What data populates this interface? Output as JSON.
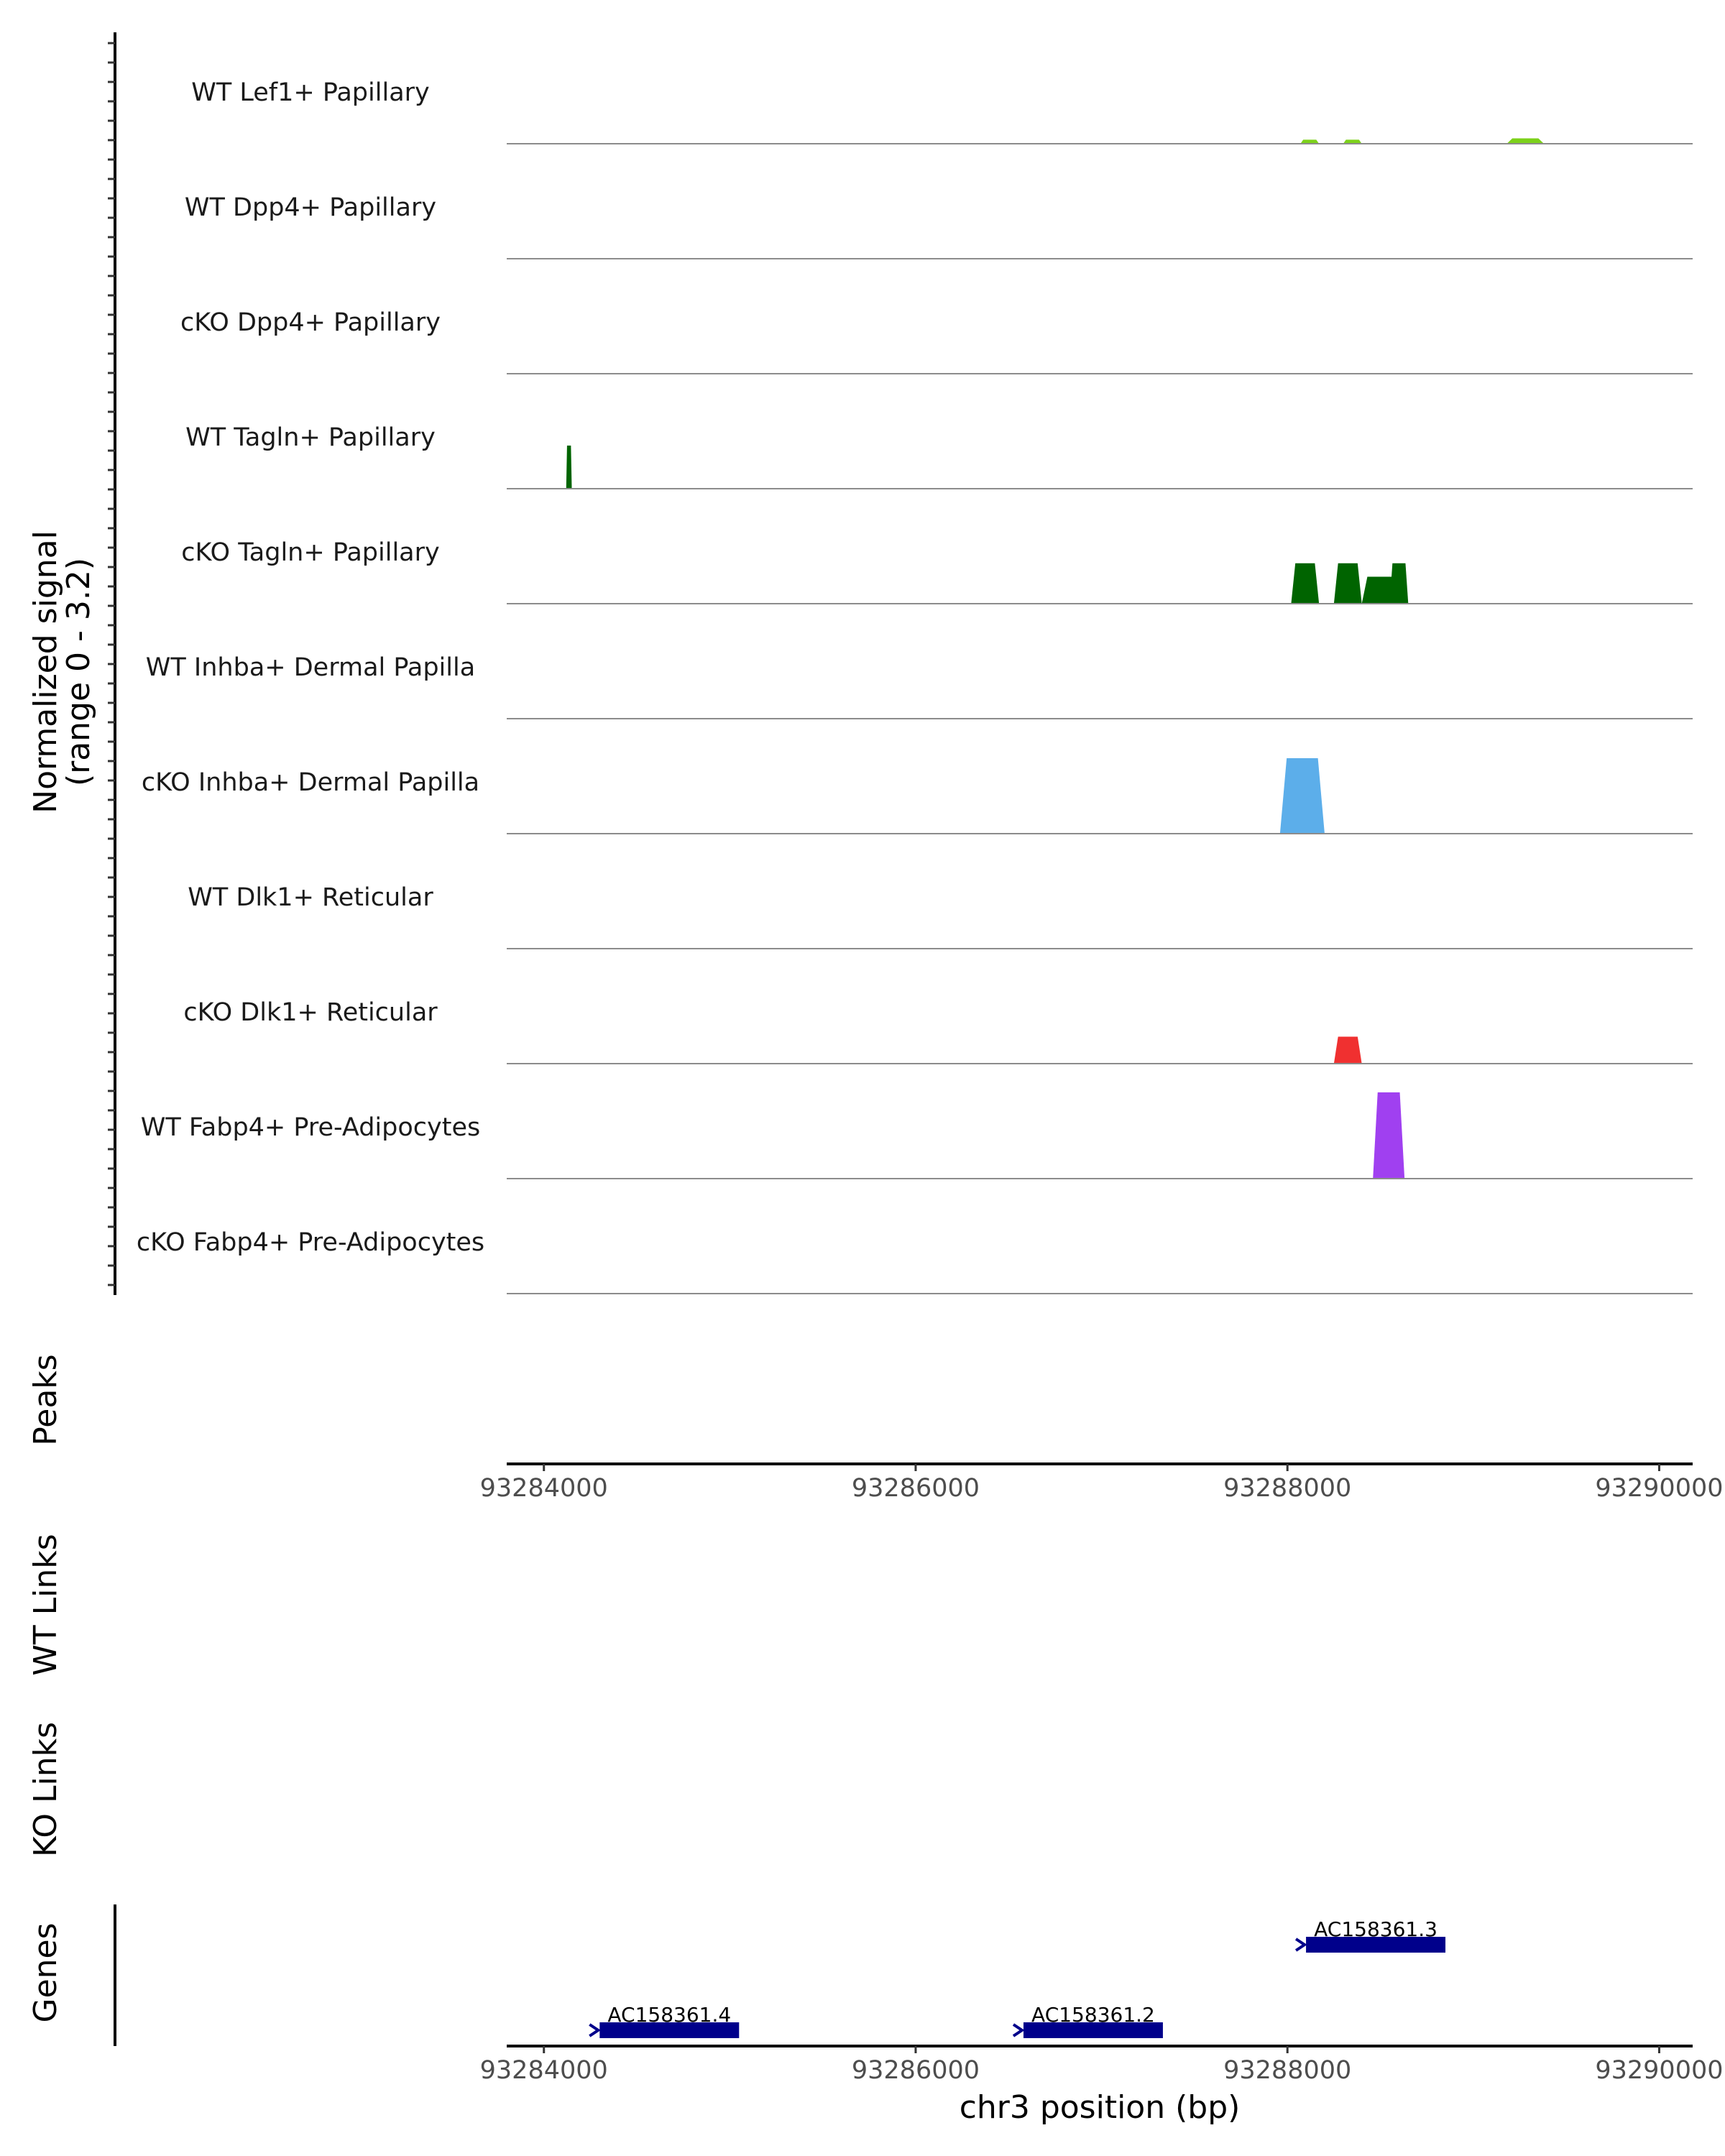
{
  "chart_data": {
    "type": "area",
    "title": "",
    "chromosome": "chr3",
    "xlabel": "chr3 position (bp)",
    "xlim": [
      93283800,
      93290180
    ],
    "x_ticks": [
      93284000,
      93286000,
      93288000,
      93290000
    ],
    "x_tick_labels": [
      "93284000",
      "93286000",
      "93288000",
      "93290000"
    ],
    "coverage_ylabel_line1": "Normalized signal",
    "coverage_ylabel_line2": "(range 0 - 3.2)",
    "ylim": [
      0,
      3.2
    ],
    "tracks": [
      {
        "name": "WT Lef1+ Papillary",
        "color": "#7cd11a",
        "peaks": [
          [
            93288070,
            93288170,
            0.15
          ],
          [
            93288300,
            93288400,
            0.15
          ],
          [
            93289180,
            93289380,
            0.2
          ]
        ]
      },
      {
        "name": "WT Dpp4+ Papillary",
        "color": "#7cd11a",
        "peaks": []
      },
      {
        "name": "cKO Dpp4+ Papillary",
        "color": "#7cd11a",
        "peaks": []
      },
      {
        "name": "WT Tagln+ Papillary",
        "color": "#006400",
        "peaks": [
          [
            93284120,
            93284150,
            1.6
          ]
        ]
      },
      {
        "name": "cKO Tagln+ Papillary",
        "color": "#006400",
        "peaks": [
          [
            93288020,
            93288170,
            1.5
          ],
          [
            93288250,
            93288400,
            1.5
          ],
          [
            93288400,
            93288600,
            1.0
          ],
          [
            93288550,
            93288650,
            1.5
          ]
        ]
      },
      {
        "name": "WT Inhba+ Dermal Papilla",
        "color": "#5caeea",
        "peaks": []
      },
      {
        "name": "cKO Inhba+ Dermal Papilla",
        "color": "#5caeea",
        "peaks": [
          [
            93287960,
            93288200,
            2.8
          ]
        ]
      },
      {
        "name": "WT Dlk1+ Reticular",
        "color": "#f03030",
        "peaks": []
      },
      {
        "name": "cKO Dlk1+ Reticular",
        "color": "#f03030",
        "peaks": [
          [
            93288250,
            93288400,
            1.0
          ]
        ]
      },
      {
        "name": "WT Fabp4+ Pre-Adipocytes",
        "color": "#a040f0",
        "peaks": [
          [
            93288460,
            93288630,
            3.2
          ]
        ]
      },
      {
        "name": "cKO Fabp4+ Pre-Adipocytes",
        "color": "#a040f0",
        "peaks": []
      }
    ],
    "panels": {
      "peaks": "Peaks",
      "wt_links": "WT Links",
      "ko_links": "KO Links",
      "genes": "Genes"
    },
    "genes": [
      {
        "name": "AC158361.3",
        "start": 93288100,
        "end": 93288850,
        "row": 0
      },
      {
        "name": "AC158361.4",
        "start": 93284300,
        "end": 93285050,
        "row": 1
      },
      {
        "name": "AC158361.2",
        "start": 93286580,
        "end": 93287330,
        "row": 1
      }
    ],
    "gene_color": "#00008b"
  }
}
